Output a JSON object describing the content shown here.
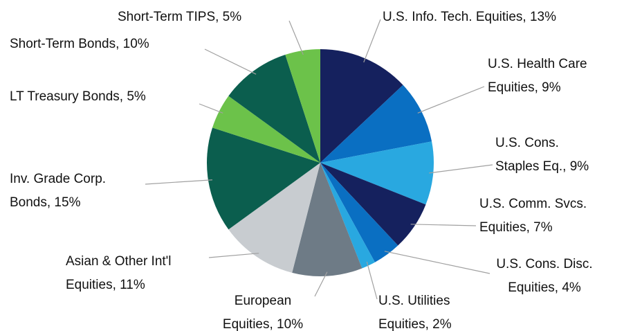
{
  "chart_data": {
    "type": "pie",
    "categories": [
      "U.S. Info. Tech. Equities, 13%",
      "U.S. Health Care Equities, 9%",
      "U.S. Cons. Staples Eq., 9%",
      "U.S. Comm. Svcs. Equities, 7%",
      "U.S. Cons. Disc. Equities, 4%",
      "U.S. Utilities Equities, 2%",
      "European Equities, 10%",
      "Asian & Other Int'l Equities, 11%",
      "Inv. Grade Corp. Bonds, 15%",
      "LT Treasury Bonds, 5%",
      "Short-Term Bonds, 10%",
      "Short-Term TIPS, 5%"
    ],
    "values": [
      13,
      9,
      9,
      7,
      4,
      2,
      10,
      11,
      15,
      5,
      10,
      5
    ],
    "colors": [
      "#15215e",
      "#0a6fc2",
      "#29a8e0",
      "#15215e",
      "#0a6fc2",
      "#29a8e0",
      "#6e7b86",
      "#c8ccd0",
      "#0b5e4e",
      "#6cc24a",
      "#0b5e4e",
      "#6cc24a"
    ]
  }
}
